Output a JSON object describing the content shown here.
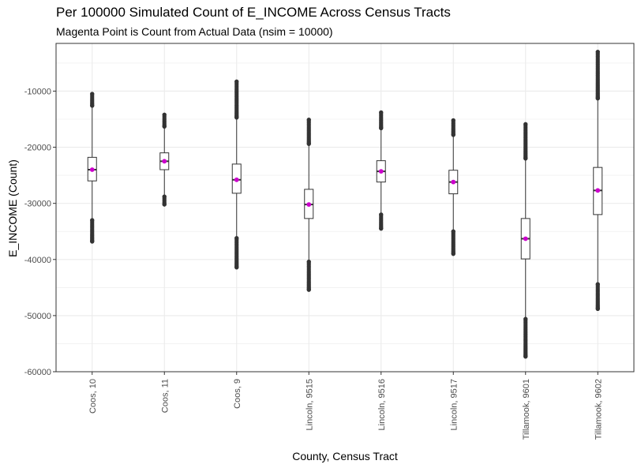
{
  "chart_data": {
    "type": "boxplot",
    "title": "Per 100000 Simulated Count of E_INCOME Across Census Tracts",
    "subtitle": "Magenta Point is Count from Actual Data (nsim = 10000)",
    "xlabel": "County, Census Tract",
    "ylabel": "E_INCOME (Count)",
    "ylim": [
      -60000,
      -1500
    ],
    "yticks": [
      -60000,
      -50000,
      -40000,
      -30000,
      -20000,
      -10000
    ],
    "ytick_labels": [
      "-60000",
      "-50000",
      "-40000",
      "-30000",
      "-20000",
      "-10000"
    ],
    "grid": true,
    "colors": {
      "box": "#333333",
      "actual_point": "#cc00cc",
      "grid": "#ebebeb",
      "outlier": "#333333"
    },
    "categories": [
      "Coos, 10",
      "Coos, 11",
      "Coos, 9",
      "Lincoln, 9515",
      "Lincoln, 9516",
      "Lincoln, 9517",
      "Tillamook, 9601",
      "Tillamook, 9602"
    ],
    "boxes": [
      {
        "category": "Coos, 10",
        "whisker_low": -33000,
        "q1": -26000,
        "median": -24000,
        "q3": -21800,
        "whisker_high": -12600,
        "actual": -24000,
        "outlier_ranges": [
          [
            -36800,
            -33000
          ],
          [
            -12600,
            -10500
          ]
        ]
      },
      {
        "category": "Coos, 11",
        "whisker_low": -28800,
        "q1": -24000,
        "median": -22500,
        "q3": -21000,
        "whisker_high": -16300,
        "actual": -22500,
        "outlier_ranges": [
          [
            -30200,
            -28800
          ],
          [
            -16300,
            -14200
          ]
        ]
      },
      {
        "category": "Coos, 9",
        "whisker_low": -36200,
        "q1": -28200,
        "median": -25800,
        "q3": -23000,
        "whisker_high": -14700,
        "actual": -25800,
        "outlier_ranges": [
          [
            -41400,
            -36200
          ],
          [
            -14700,
            -8300
          ]
        ]
      },
      {
        "category": "Lincoln, 9515",
        "whisker_low": -40400,
        "q1": -32700,
        "median": -30200,
        "q3": -27500,
        "whisker_high": -19400,
        "actual": -30200,
        "outlier_ranges": [
          [
            -45400,
            -40400
          ],
          [
            -19400,
            -15100
          ]
        ]
      },
      {
        "category": "Lincoln, 9516",
        "whisker_low": -32000,
        "q1": -26200,
        "median": -24300,
        "q3": -22400,
        "whisker_high": -16600,
        "actual": -24300,
        "outlier_ranges": [
          [
            -34500,
            -32000
          ],
          [
            -16600,
            -13800
          ]
        ]
      },
      {
        "category": "Lincoln, 9517",
        "whisker_low": -35000,
        "q1": -28300,
        "median": -26200,
        "q3": -24100,
        "whisker_high": -17800,
        "actual": -26200,
        "outlier_ranges": [
          [
            -39000,
            -35000
          ],
          [
            -17800,
            -15200
          ]
        ]
      },
      {
        "category": "Tillamook, 9601",
        "whisker_low": -50600,
        "q1": -39900,
        "median": -36300,
        "q3": -32700,
        "whisker_high": -22000,
        "actual": -36300,
        "outlier_ranges": [
          [
            -57300,
            -50600
          ],
          [
            -22000,
            -15900
          ]
        ]
      },
      {
        "category": "Tillamook, 9602",
        "whisker_low": -44400,
        "q1": -32000,
        "median": -27700,
        "q3": -23600,
        "whisker_high": -11300,
        "actual": -27700,
        "outlier_ranges": [
          [
            -48800,
            -44400
          ],
          [
            -11300,
            -3000
          ]
        ]
      }
    ]
  }
}
